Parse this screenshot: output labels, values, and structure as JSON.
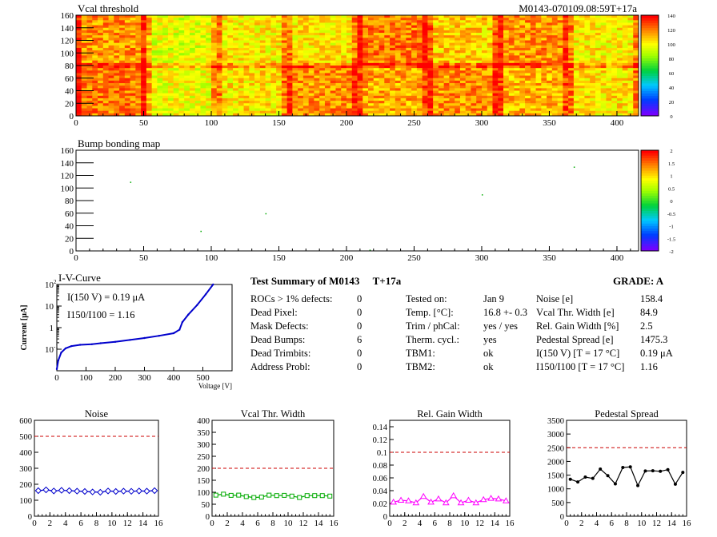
{
  "summary": {
    "title": "Test Summary of M0143",
    "condition": "T+17a",
    "grade_label": "GRADE:  A",
    "defects": [
      {
        "label": "ROCs > 1% defects:",
        "value": "0"
      },
      {
        "label": "Dead Pixel:",
        "value": "0"
      },
      {
        "label": "Mask Defects:",
        "value": "0"
      },
      {
        "label": "Dead Bumps:",
        "value": "6"
      },
      {
        "label": "Dead Trimbits:",
        "value": "0"
      },
      {
        "label": "Address Probl:",
        "value": "0"
      }
    ],
    "conditions": [
      {
        "label": "Tested on:",
        "value": "Jan 9"
      },
      {
        "label": "Temp. [°C]:",
        "value": "16.8 +- 0.3"
      },
      {
        "label": "Trim / phCal:",
        "value": "yes / yes"
      },
      {
        "label": "Therm. cycl.:",
        "value": "yes"
      },
      {
        "label": "TBM1:",
        "value": "ok"
      },
      {
        "label": "TBM2:",
        "value": "ok"
      }
    ],
    "results": [
      {
        "label": "Noise [e]",
        "value": "158.4"
      },
      {
        "label": "Vcal Thr. Width [e]",
        "value": "84.9"
      },
      {
        "label": "Rel. Gain Width [%]",
        "value": "2.5"
      },
      {
        "label": "Pedestal Spread [e]",
        "value": "1475.3"
      },
      {
        "label": "I(150 V) [T = 17 °C]",
        "value": "0.19 μA"
      },
      {
        "label": "I150/I100  [T = 17 °C]",
        "value": "1.16"
      }
    ]
  },
  "chart_data": [
    {
      "type": "heatmap",
      "title": "Vcal threshold",
      "module_label": "M0143-070109.08:59T+17a",
      "xlim": [
        0,
        416
      ],
      "ylim": [
        0,
        160
      ],
      "xticks": [
        0,
        50,
        100,
        150,
        200,
        250,
        300,
        350,
        400
      ],
      "yticks": [
        0,
        20,
        40,
        60,
        80,
        100,
        120,
        140,
        160
      ],
      "zlim": [
        0,
        140
      ],
      "zticks": [
        0,
        20,
        40,
        60,
        80,
        100,
        120,
        140
      ],
      "roc_means_top": [
        118,
        96,
        102,
        104,
        122,
        108,
        118,
        102
      ],
      "roc_means_bottom": [
        122,
        98,
        104,
        118,
        114,
        118,
        112,
        104
      ],
      "colors": {
        "low": "#7a00ff",
        "mid": "#ffff00",
        "high": "#ff0000"
      }
    },
    {
      "type": "heatmap",
      "title": "Bump bonding map",
      "xlim": [
        0,
        416
      ],
      "ylim": [
        0,
        160
      ],
      "xticks": [
        0,
        50,
        100,
        150,
        200,
        250,
        300,
        350,
        400
      ],
      "yticks": [
        0,
        20,
        40,
        60,
        80,
        100,
        120,
        140,
        160
      ],
      "zlim": [
        -2,
        2
      ],
      "zticks": [
        "2",
        "1.5",
        "1",
        "0.5",
        "0",
        "-0.5",
        "-1",
        "-1.5",
        "-2"
      ],
      "dead_bumps": [
        [
          92,
          32
        ],
        [
          217,
          2
        ],
        [
          368,
          134
        ],
        [
          140,
          60
        ],
        [
          300,
          90
        ],
        [
          40,
          110
        ]
      ]
    },
    {
      "type": "line",
      "title": "I-V-Curve",
      "xlabel": "Voltage [V]",
      "ylabel": "Current [μA]",
      "xlim": [
        0,
        600
      ],
      "ylim": [
        0.01,
        100
      ],
      "log_y": true,
      "xticks": [
        0,
        100,
        200,
        300,
        400,
        500
      ],
      "annotation_1": "I(150 V) = 0.19 μA",
      "annotation_2": "I150/I100 =  1.16",
      "points": [
        [
          0,
          0.012
        ],
        [
          5,
          0.03
        ],
        [
          15,
          0.07
        ],
        [
          30,
          0.11
        ],
        [
          50,
          0.14
        ],
        [
          80,
          0.16
        ],
        [
          120,
          0.17
        ],
        [
          150,
          0.19
        ],
        [
          200,
          0.22
        ],
        [
          250,
          0.27
        ],
        [
          300,
          0.33
        ],
        [
          350,
          0.42
        ],
        [
          400,
          0.55
        ],
        [
          420,
          0.8
        ],
        [
          430,
          1.8
        ],
        [
          450,
          4
        ],
        [
          480,
          11
        ],
        [
          510,
          35
        ],
        [
          535,
          100
        ]
      ]
    },
    {
      "type": "line",
      "title": "Noise",
      "x": [
        0,
        1,
        2,
        3,
        4,
        5,
        6,
        7,
        8,
        9,
        10,
        11,
        12,
        13,
        14,
        15
      ],
      "values": [
        160,
        165,
        158,
        162,
        160,
        157,
        155,
        152,
        150,
        158,
        155,
        157,
        156,
        158,
        157,
        160
      ],
      "xlim": [
        0,
        16
      ],
      "ylim": [
        0,
        600
      ],
      "yticks": [
        0,
        100,
        200,
        300,
        400,
        500,
        600
      ],
      "threshold": 500,
      "color": "#0000cc",
      "marker": "diamond"
    },
    {
      "type": "line",
      "title": "Vcal Thr. Width",
      "x": [
        0,
        1,
        2,
        3,
        4,
        5,
        6,
        7,
        8,
        9,
        10,
        11,
        12,
        13,
        14,
        15
      ],
      "values": [
        88,
        92,
        87,
        88,
        82,
        78,
        80,
        88,
        86,
        87,
        84,
        78,
        86,
        86,
        86,
        84
      ],
      "xlim": [
        0,
        16
      ],
      "ylim": [
        0,
        400
      ],
      "yticks": [
        0,
        50,
        100,
        150,
        200,
        250,
        300,
        350,
        400
      ],
      "threshold": 200,
      "color": "#00aa00",
      "marker": "square"
    },
    {
      "type": "line",
      "title": "Rel. Gain Width",
      "x": [
        0,
        1,
        2,
        3,
        4,
        5,
        6,
        7,
        8,
        9,
        10,
        11,
        12,
        13,
        14,
        15
      ],
      "values": [
        0.022,
        0.025,
        0.024,
        0.021,
        0.031,
        0.022,
        0.027,
        0.021,
        0.032,
        0.021,
        0.025,
        0.021,
        0.026,
        0.028,
        0.027,
        0.024
      ],
      "xlim": [
        0,
        16
      ],
      "ylim": [
        0,
        0.15
      ],
      "yticks": [
        0,
        0.02,
        0.04,
        0.06,
        0.08,
        0.1,
        0.12,
        0.14
      ],
      "threshold": 0.1,
      "color": "#ff00ff",
      "marker": "triangle"
    },
    {
      "type": "line",
      "title": "Pedestal Spread",
      "x": [
        0,
        1,
        2,
        3,
        4,
        5,
        6,
        7,
        8,
        9,
        10,
        11,
        12,
        13,
        14,
        15
      ],
      "values": [
        1350,
        1250,
        1430,
        1380,
        1720,
        1480,
        1180,
        1780,
        1800,
        1120,
        1650,
        1660,
        1640,
        1700,
        1170,
        1600
      ],
      "xlim": [
        0,
        16
      ],
      "ylim": [
        0,
        3500
      ],
      "yticks": [
        0,
        500,
        1000,
        1500,
        2000,
        2500,
        3000,
        3500
      ],
      "threshold": 2500,
      "color": "#000000",
      "marker": "dot"
    }
  ]
}
